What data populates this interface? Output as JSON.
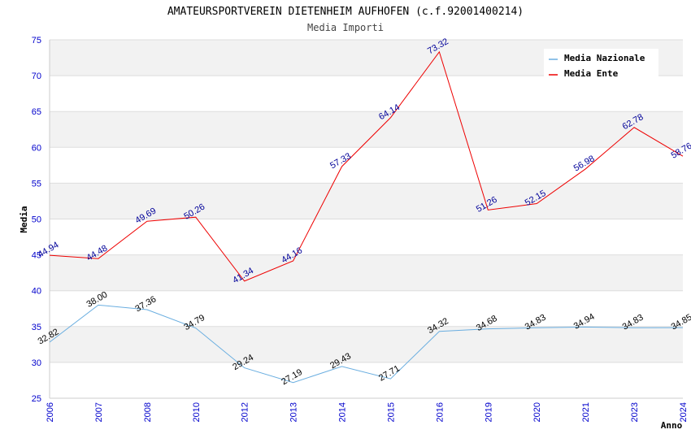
{
  "chart_data": {
    "type": "line",
    "title": "AMATEURSPORTVEREIN DIETENHEIM AUFHOFEN (c.f.92001400214)",
    "subtitle": "Media Importi",
    "xlabel": "Anno",
    "ylabel": "Media",
    "ylim": [
      25,
      75
    ],
    "yticks": [
      "25",
      "30",
      "35",
      "40",
      "45",
      "50",
      "55",
      "60",
      "65",
      "70",
      "75"
    ],
    "categories": [
      "2006",
      "2007",
      "2008",
      "2010",
      "2012",
      "2013",
      "2014",
      "2015",
      "2016",
      "2019",
      "2020",
      "2021",
      "2023",
      "2024"
    ],
    "series": [
      {
        "name": "Media Nazionale",
        "color": "#6aaee0",
        "values": [
          32.82,
          38.0,
          37.36,
          34.79,
          29.24,
          27.19,
          29.43,
          27.71,
          34.32,
          34.68,
          34.83,
          34.94,
          34.83,
          34.85
        ],
        "labels": [
          "32.82",
          "38.00",
          "37.36",
          "34.79",
          "29.24",
          "27.19",
          "29.43",
          "27.71",
          "34.32",
          "34.68",
          "34.83",
          "34.94",
          "34.83",
          "34.85"
        ]
      },
      {
        "name": "Media Ente",
        "color": "#ee0000",
        "values": [
          44.94,
          44.48,
          49.69,
          50.26,
          41.34,
          44.16,
          57.33,
          64.14,
          73.32,
          51.26,
          52.15,
          56.98,
          62.78,
          58.76
        ],
        "labels": [
          "44.94",
          "44.48",
          "49.69",
          "50.26",
          "41.34",
          "44.16",
          "57.33",
          "64.14",
          "73.32",
          "51.26",
          "52.15",
          "56.98",
          "62.78",
          "58.76"
        ]
      }
    ],
    "legend": "top-right",
    "grid": true,
    "band_colors": [
      "#f2f2f2",
      "#ffffff"
    ]
  }
}
